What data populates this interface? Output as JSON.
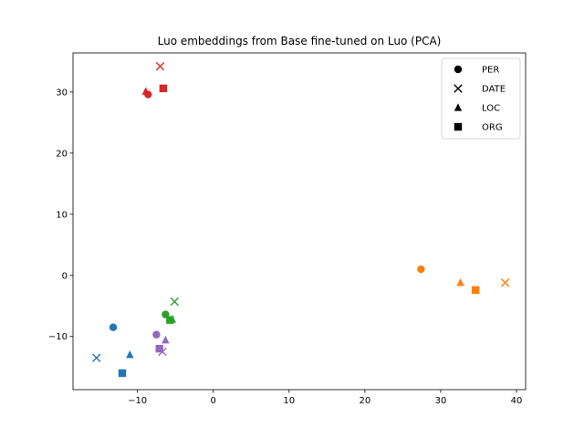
{
  "chart_data": {
    "type": "scatter",
    "title": "Luo embeddings from Base fine-tuned on Luo (PCA)",
    "xlabel": "",
    "ylabel": "",
    "xlim": [
      -18.5,
      41.2
    ],
    "ylim": [
      -18.7,
      36.4
    ],
    "x_ticks": [
      -10,
      0,
      10,
      20,
      30,
      40
    ],
    "y_ticks": [
      -10,
      0,
      10,
      20,
      30
    ],
    "legend": {
      "location": "top-right",
      "entries": [
        {
          "label": "PER",
          "marker": "circle"
        },
        {
          "label": "DATE",
          "marker": "x"
        },
        {
          "label": "LOC",
          "marker": "triangle"
        },
        {
          "label": "ORG",
          "marker": "square"
        }
      ]
    },
    "colors": {
      "blue": "#1f77b4",
      "orange": "#ff7f0e",
      "green": "#2ca02c",
      "red": "#d62728",
      "purple": "#9467bd"
    },
    "points": [
      {
        "group": "blue",
        "entity": "PER",
        "x": -13.2,
        "y": -8.5
      },
      {
        "group": "blue",
        "entity": "DATE",
        "x": -15.4,
        "y": -13.5
      },
      {
        "group": "blue",
        "entity": "LOC",
        "x": -11.0,
        "y": -13.0
      },
      {
        "group": "blue",
        "entity": "ORG",
        "x": -12.0,
        "y": -16.0
      },
      {
        "group": "orange",
        "entity": "PER",
        "x": 27.4,
        "y": 1.0
      },
      {
        "group": "orange",
        "entity": "DATE",
        "x": 38.5,
        "y": -1.2
      },
      {
        "group": "orange",
        "entity": "LOC",
        "x": 32.6,
        "y": -1.2
      },
      {
        "group": "orange",
        "entity": "ORG",
        "x": 34.6,
        "y": -2.4
      },
      {
        "group": "green",
        "entity": "PER",
        "x": -6.3,
        "y": -6.4
      },
      {
        "group": "green",
        "entity": "DATE",
        "x": -5.1,
        "y": -4.3
      },
      {
        "group": "green",
        "entity": "LOC",
        "x": -5.4,
        "y": -7.2
      },
      {
        "group": "green",
        "entity": "ORG",
        "x": -5.7,
        "y": -7.3
      },
      {
        "group": "red",
        "entity": "PER",
        "x": -8.6,
        "y": 29.6
      },
      {
        "group": "red",
        "entity": "DATE",
        "x": -7.0,
        "y": 34.2
      },
      {
        "group": "red",
        "entity": "LOC",
        "x": -8.9,
        "y": 30.1
      },
      {
        "group": "red",
        "entity": "ORG",
        "x": -6.6,
        "y": 30.6
      },
      {
        "group": "purple",
        "entity": "PER",
        "x": -7.5,
        "y": -9.7
      },
      {
        "group": "purple",
        "entity": "DATE",
        "x": -6.7,
        "y": -12.5
      },
      {
        "group": "purple",
        "entity": "LOC",
        "x": -6.3,
        "y": -10.6
      },
      {
        "group": "purple",
        "entity": "ORG",
        "x": -7.1,
        "y": -12.0
      }
    ]
  }
}
